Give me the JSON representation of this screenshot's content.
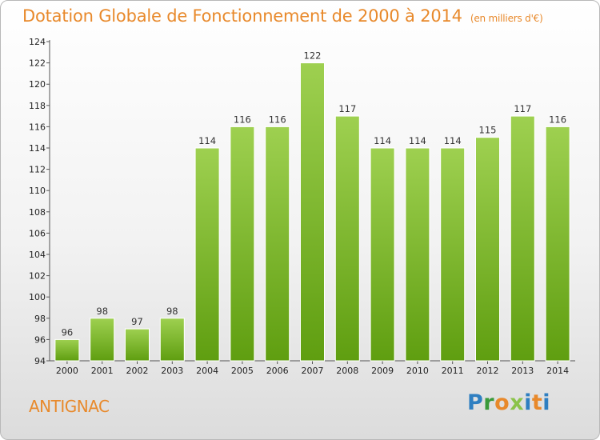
{
  "title": "Dotation Globale de Fonctionnement de 2000 à 2014",
  "subtitle": "(en milliers d'€)",
  "city": "ANTIGNAC",
  "logo": {
    "p": "P",
    "r": "r",
    "o": "o",
    "x": "x",
    "i": "i",
    "t": "t",
    "i2": "i"
  },
  "colors": {
    "title": "#e8892b",
    "bar_top": "#9ed050",
    "bar_bottom": "#5f9e10"
  },
  "chart_data": {
    "type": "bar",
    "categories": [
      "2000",
      "2001",
      "2002",
      "2003",
      "2004",
      "2005",
      "2006",
      "2007",
      "2008",
      "2009",
      "2010",
      "2011",
      "2012",
      "2013",
      "2014"
    ],
    "values": [
      96,
      98,
      97,
      98,
      114,
      116,
      116,
      122,
      117,
      114,
      114,
      114,
      115,
      117,
      116
    ],
    "ylim": [
      94,
      124
    ],
    "yticks": [
      94,
      96,
      98,
      100,
      102,
      104,
      106,
      108,
      110,
      112,
      114,
      116,
      118,
      120,
      122,
      124
    ],
    "xlabel": "",
    "ylabel": "",
    "grid": false,
    "legend": "none"
  }
}
